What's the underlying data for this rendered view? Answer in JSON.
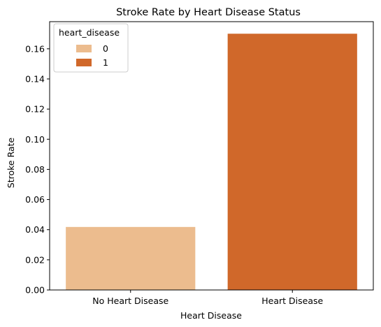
{
  "chart_data": {
    "type": "bar",
    "title": "Stroke Rate by Heart Disease Status",
    "xlabel": "Heart Disease",
    "ylabel": "Stroke Rate",
    "categories": [
      "No Heart Disease",
      "Heart Disease"
    ],
    "values": [
      0.0418,
      0.17
    ],
    "hue": [
      "0",
      "1"
    ],
    "colors": [
      "#ecbc8e",
      "#d0682a"
    ],
    "ylim": [
      0,
      0.178
    ],
    "yticks": [
      0.0,
      0.02,
      0.04,
      0.06,
      0.08,
      0.1,
      0.12,
      0.14,
      0.16
    ],
    "ytick_labels": [
      "0.00",
      "0.02",
      "0.04",
      "0.06",
      "0.08",
      "0.10",
      "0.12",
      "0.14",
      "0.16"
    ],
    "grid": false,
    "legend": {
      "title": "heart_disease",
      "placement": "top-left",
      "entries": [
        "0",
        "1"
      ]
    }
  }
}
